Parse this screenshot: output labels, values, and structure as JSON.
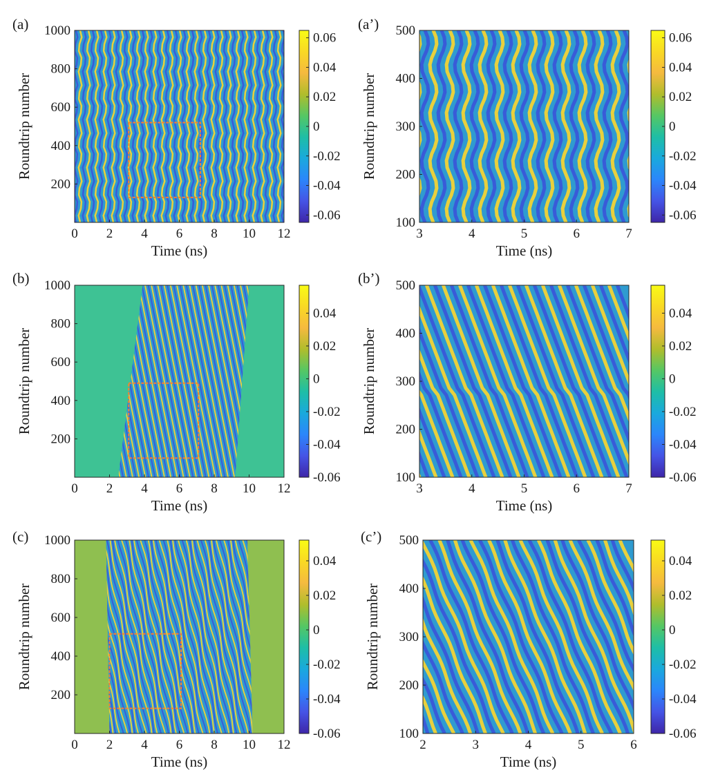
{
  "figure": {
    "colormap": [
      "#3e26a8",
      "#4554e6",
      "#2b86fb",
      "#1aa9dd",
      "#1ebea6",
      "#55c764",
      "#b0bd2c",
      "#f5ba3f",
      "#f9d924",
      "#f9fb15"
    ],
    "frame_color": "#ff7f2a"
  },
  "chart_data": [
    {
      "panel": "(a)",
      "type": "heatmap",
      "pattern": "wavy",
      "xlabel": "Time (ns)",
      "ylabel": "Roundtrip number",
      "xlim": [
        0,
        12
      ],
      "ylim": [
        0,
        1000
      ],
      "xticks": [
        0,
        2,
        4,
        6,
        8,
        10,
        12
      ],
      "yticks": [
        200,
        400,
        600,
        800,
        1000
      ],
      "colorbar": {
        "range": [
          -0.065,
          0.065
        ],
        "ticks": [
          0.06,
          0.04,
          0.02,
          0,
          -0.02,
          -0.04,
          -0.06
        ]
      },
      "pulse_region": [
        0,
        12
      ],
      "zoom_box": {
        "x": [
          3.1,
          7.2
        ],
        "y": [
          130,
          520
        ]
      }
    },
    {
      "panel": "(a’)",
      "type": "heatmap",
      "pattern": "wavy",
      "xlabel": "Time (ns)",
      "ylabel": "Roundtrip number",
      "xlim": [
        3,
        7
      ],
      "ylim": [
        100,
        500
      ],
      "xticks": [
        3,
        4,
        5,
        6,
        7
      ],
      "yticks": [
        100,
        200,
        300,
        400,
        500
      ],
      "colorbar": {
        "range": [
          -0.065,
          0.065
        ],
        "ticks": [
          0.06,
          0.04,
          0.02,
          0,
          -0.02,
          -0.04,
          -0.06
        ]
      },
      "pulse_region": [
        3,
        7
      ]
    },
    {
      "panel": "(b)",
      "type": "heatmap",
      "pattern": "slanted",
      "xlabel": "Time (ns)",
      "ylabel": "Roundtrip number",
      "xlim": [
        0,
        12
      ],
      "ylim": [
        0,
        1000
      ],
      "xticks": [
        0,
        2,
        4,
        6,
        8,
        10,
        12
      ],
      "yticks": [
        200,
        400,
        600,
        800,
        1000
      ],
      "colorbar": {
        "range": [
          -0.06,
          0.057
        ],
        "ticks": [
          0.04,
          0.02,
          0,
          -0.02,
          -0.04,
          -0.06
        ]
      },
      "pulse_region": {
        "bottom": [
          2.5,
          9.2
        ],
        "top": [
          3.9,
          10.0
        ]
      },
      "zoom_box": {
        "x": [
          3.1,
          7.1
        ],
        "y": [
          100,
          490
        ]
      }
    },
    {
      "panel": "(b’)",
      "type": "heatmap",
      "pattern": "slanted",
      "xlabel": "Time (ns)",
      "ylabel": "Roundtrip number",
      "xlim": [
        3,
        7
      ],
      "ylim": [
        100,
        500
      ],
      "xticks": [
        3,
        4,
        5,
        6,
        7
      ],
      "yticks": [
        100,
        200,
        300,
        400,
        500
      ],
      "colorbar": {
        "range": [
          -0.06,
          0.057
        ],
        "ticks": [
          0.04,
          0.02,
          0,
          -0.02,
          -0.04,
          -0.06
        ]
      },
      "pulse_region": [
        3,
        7
      ]
    },
    {
      "panel": "(c)",
      "type": "heatmap",
      "pattern": "turbulent",
      "xlabel": "Time (ns)",
      "ylabel": "Roundtrip number",
      "xlim": [
        0,
        12
      ],
      "ylim": [
        0,
        1000
      ],
      "xticks": [
        0,
        2,
        4,
        6,
        8,
        10,
        12
      ],
      "yticks": [
        200,
        400,
        600,
        800,
        1000
      ],
      "colorbar": {
        "range": [
          -0.06,
          0.052
        ],
        "ticks": [
          0.04,
          0.02,
          0,
          -0.02,
          -0.04,
          -0.06
        ]
      },
      "pulse_region": {
        "bottom": [
          2.0,
          10.2
        ],
        "top": [
          1.8,
          9.9
        ]
      },
      "zoom_box": {
        "x": [
          2.0,
          6.1
        ],
        "y": [
          130,
          515
        ]
      }
    },
    {
      "panel": "(c’)",
      "type": "heatmap",
      "pattern": "turbulent",
      "xlabel": "Time (ns)",
      "ylabel": "Roundtrip number",
      "xlim": [
        2,
        6
      ],
      "ylim": [
        100,
        500
      ],
      "xticks": [
        2,
        3,
        4,
        5,
        6
      ],
      "yticks": [
        100,
        200,
        300,
        400,
        500
      ],
      "colorbar": {
        "range": [
          -0.06,
          0.052
        ],
        "ticks": [
          0.04,
          0.02,
          0,
          -0.02,
          -0.04,
          -0.06
        ]
      },
      "pulse_region": [
        2,
        6
      ]
    }
  ]
}
